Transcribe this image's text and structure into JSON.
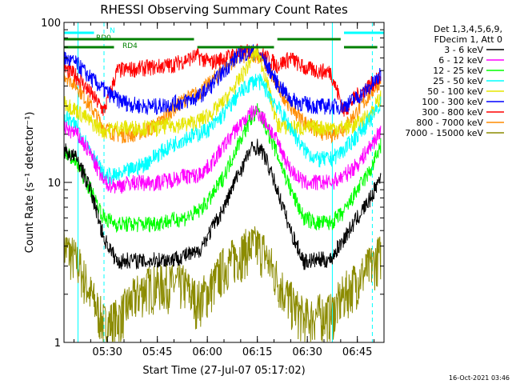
{
  "chart_data": {
    "type": "line",
    "title": "RHESSI Observing Summary Count Rates",
    "xlabel": "Start Time (27-Jul-07 05:17:02)",
    "ylabel": "Count Rate (s⁻¹ detector⁻¹)",
    "y_scale": "log",
    "ylim": [
      1,
      100
    ],
    "xlim_minutes": [
      0,
      96
    ],
    "x_ticks": [
      {
        "label": "05:30",
        "minute": 13
      },
      {
        "label": "05:45",
        "minute": 28
      },
      {
        "label": "06:00",
        "minute": 43
      },
      {
        "label": "06:15",
        "minute": 58
      },
      {
        "label": "06:30",
        "minute": 73
      },
      {
        "label": "06:45",
        "minute": 88
      }
    ],
    "y_ticks": [
      {
        "label": "1",
        "value": 1
      },
      {
        "label": "10",
        "value": 10
      },
      {
        "label": "100",
        "value": 100
      }
    ],
    "legend": {
      "placement": "right",
      "header": [
        "Det 1,3,4,5,6,9,",
        "FDecim 1, Att 0"
      ],
      "entries": [
        {
          "label": "3 - 6 keV",
          "color": "#000000"
        },
        {
          "label": "6 - 12 keV",
          "color": "#ff00ff"
        },
        {
          "label": "12 - 25 keV",
          "color": "#00ff00"
        },
        {
          "label": "25 - 50 keV",
          "color": "#00ffff"
        },
        {
          "label": "50 - 100 keV",
          "color": "#e6e600"
        },
        {
          "label": "100 - 300 keV",
          "color": "#0000ff"
        },
        {
          "label": "300 - 800 keV",
          "color": "#ff0000"
        },
        {
          "label": "800 - 7000 keV",
          "color": "#ff8c00"
        },
        {
          "label": "7000 - 15000 keV",
          "color": "#8b8b00"
        }
      ]
    },
    "annotations": {
      "flag_labels": [
        "N",
        "RD0",
        "RD4"
      ],
      "flag_bars": [
        {
          "label": "N",
          "color": "#00ffff",
          "segments": [
            [
              0,
              9
            ],
            [
              84,
              96
            ]
          ]
        },
        {
          "label": "RD0",
          "color": "#008000",
          "segments": [
            [
              0,
              39
            ],
            [
              64,
              83
            ]
          ]
        },
        {
          "label": "RD4",
          "color": "#008000",
          "segments": [
            [
              0,
              15
            ],
            [
              40,
              63
            ],
            [
              84,
              94
            ]
          ]
        }
      ],
      "vertical_lines": [
        {
          "minute": 4.2,
          "color": "#00ffff",
          "style": "solid"
        },
        {
          "minute": 12,
          "color": "#00ffff",
          "style": "dashed"
        },
        {
          "minute": 80.5,
          "color": "#00ffff",
          "style": "solid"
        },
        {
          "minute": 92.5,
          "color": "#00ffff",
          "style": "dashed"
        }
      ]
    },
    "x_minutes": [
      0,
      4,
      8,
      12,
      16,
      20,
      24,
      28,
      32,
      36,
      40,
      44,
      48,
      52,
      56,
      58,
      60,
      64,
      68,
      72,
      76,
      80,
      84,
      88,
      92,
      95
    ],
    "series": [
      {
        "name": "3 - 6 keV",
        "color": "#000000",
        "values": [
          16,
          14,
          9,
          4.5,
          3.2,
          3.3,
          3.2,
          3.3,
          3.3,
          3.5,
          3.6,
          5,
          7,
          11,
          16,
          17,
          15,
          9,
          5,
          3.2,
          3.3,
          3.3,
          4.5,
          6,
          8,
          11
        ]
      },
      {
        "name": "6 - 12 keV",
        "color": "#ff00ff",
        "values": [
          22,
          20,
          15,
          10,
          9.5,
          10,
          10,
          10,
          10.5,
          11,
          11,
          13,
          17,
          22,
          27,
          28,
          25,
          18,
          12,
          10,
          10,
          10,
          11,
          13,
          17,
          21
        ]
      },
      {
        "name": "12 - 25 keV",
        "color": "#00ff00",
        "values": [
          16,
          13,
          9,
          6,
          5.5,
          5.5,
          5.5,
          5.6,
          5.8,
          6,
          6.5,
          8,
          11,
          17,
          25,
          28,
          24,
          15,
          9,
          6,
          5.6,
          5.6,
          6.5,
          9,
          12,
          17
        ]
      },
      {
        "name": "25 - 50 keV",
        "color": "#00ffff",
        "values": [
          26,
          22,
          16,
          11,
          11,
          12,
          13,
          15,
          17,
          19,
          20,
          22,
          27,
          35,
          42,
          44,
          40,
          30,
          22,
          16,
          14,
          14,
          16,
          20,
          25,
          31
        ]
      },
      {
        "name": "50 - 100 keV",
        "color": "#e6e600",
        "values": [
          32,
          28,
          24,
          21,
          22,
          22,
          22,
          22,
          23,
          23,
          24,
          27,
          32,
          42,
          58,
          66,
          50,
          23,
          22,
          22,
          22,
          22,
          22,
          23,
          27,
          34
        ]
      },
      {
        "name": "100 - 300 keV",
        "color": "#0000ff",
        "values": [
          60,
          55,
          45,
          38,
          33,
          31,
          30,
          30,
          31,
          32,
          34,
          40,
          50,
          62,
          66,
          65,
          58,
          42,
          33,
          31,
          30,
          30,
          30,
          34,
          40,
          47
        ]
      },
      {
        "name": "300 - 800 keV",
        "color": "#ff0000",
        "values": [
          52,
          46,
          36,
          28,
          50,
          51,
          52,
          53,
          54,
          58,
          62,
          56,
          60,
          64,
          66,
          66,
          62,
          54,
          60,
          52,
          50,
          49,
          28,
          35,
          41,
          45
        ]
      },
      {
        "name": "800 - 7000 keV",
        "color": "#ff8c00",
        "values": [
          48,
          40,
          30,
          22,
          20,
          20,
          21,
          23,
          28,
          33,
          36,
          42,
          52,
          60,
          64,
          63,
          57,
          40,
          30,
          24,
          21,
          20,
          22,
          28,
          36,
          44
        ]
      },
      {
        "name": "7000 - 15000 keV",
        "color": "#8b8b00",
        "values": [
          4,
          3.2,
          2,
          1.3,
          1.4,
          1.8,
          2.2,
          2.3,
          2.3,
          2.3,
          1.8,
          2.2,
          3,
          3.5,
          4,
          4,
          3.7,
          2.5,
          1.8,
          1.4,
          1.5,
          1.5,
          2,
          2.5,
          3,
          3.6
        ]
      }
    ]
  },
  "footer": {
    "timestamp": "16-Oct-2021 03:46"
  }
}
